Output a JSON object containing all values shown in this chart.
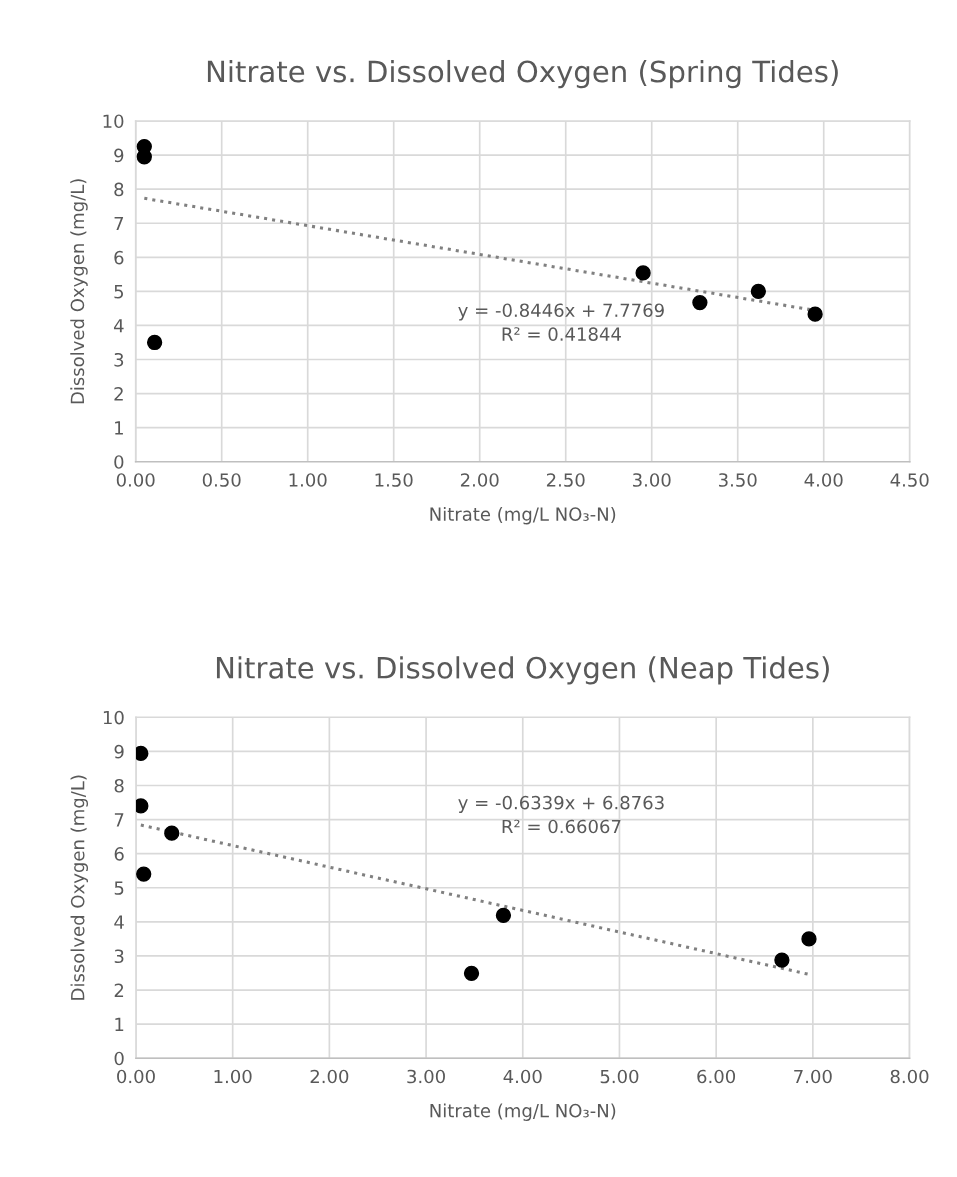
{
  "chart_data": [
    {
      "type": "scatter",
      "title": "Nitrate vs. Dissolved Oxygen (Spring Tides)",
      "xlabel": "Nitrate (mg/L NO₃-N)",
      "ylabel": "Dissolved Oxygen (mg/L)",
      "xlim": [
        0,
        4.5
      ],
      "xticks": [
        {
          "value": 0,
          "label": "0.00"
        },
        {
          "value": 0.5,
          "label": "0.50"
        },
        {
          "value": 1,
          "label": "1.00"
        },
        {
          "value": 1.5,
          "label": "1.50"
        },
        {
          "value": 2,
          "label": "2.00"
        },
        {
          "value": 2.5,
          "label": "2.50"
        },
        {
          "value": 3,
          "label": "3.00"
        },
        {
          "value": 3.5,
          "label": "3.50"
        },
        {
          "value": 4,
          "label": "4.00"
        },
        {
          "value": 4.5,
          "label": "4.50"
        }
      ],
      "ylim": [
        0,
        10
      ],
      "yticks": [
        0,
        1,
        2,
        3,
        4,
        5,
        6,
        7,
        8,
        9,
        10
      ],
      "grid": true,
      "marker": "circle",
      "series": [
        {
          "type": "scatter",
          "color": "#000000",
          "x": [
            0.05,
            0.05,
            0.11,
            2.95,
            3.28,
            3.62,
            3.95
          ],
          "values": [
            9.25,
            8.95,
            3.5,
            5.54,
            4.67,
            5.0,
            4.33
          ]
        },
        {
          "type": "line",
          "color": "#808080",
          "line_style": "dotted",
          "marker": "none",
          "x": [
            0.05,
            3.95
          ],
          "values": [
            7.73,
            4.44
          ]
        }
      ],
      "annotations": [
        "y = -0.8446x + 7.7769",
        "R² = 0.41844"
      ]
    },
    {
      "type": "scatter",
      "title": "Nitrate vs. Dissolved Oxygen (Neap Tides)",
      "xlabel": "Nitrate (mg/L NO₃-N)",
      "ylabel": "Dissolved Oxygen (mg/L)",
      "xlim": [
        0,
        8
      ],
      "xticks": [
        {
          "value": 0,
          "label": "0.00"
        },
        {
          "value": 1,
          "label": "1.00"
        },
        {
          "value": 2,
          "label": "2.00"
        },
        {
          "value": 3,
          "label": "3.00"
        },
        {
          "value": 4,
          "label": "4.00"
        },
        {
          "value": 5,
          "label": "5.00"
        },
        {
          "value": 6,
          "label": "6.00"
        },
        {
          "value": 7,
          "label": "7.00"
        },
        {
          "value": 8,
          "label": "8.00"
        }
      ],
      "ylim": [
        0,
        10
      ],
      "yticks": [
        0,
        1,
        2,
        3,
        4,
        5,
        6,
        7,
        8,
        9,
        10
      ],
      "grid": true,
      "marker": "circle",
      "series": [
        {
          "type": "scatter",
          "color": "#000000",
          "x": [
            0.05,
            0.05,
            0.08,
            0.37,
            3.47,
            3.8,
            6.68,
            6.96
          ],
          "values": [
            8.94,
            7.4,
            5.4,
            6.6,
            2.49,
            4.19,
            2.88,
            3.5
          ]
        },
        {
          "type": "line",
          "color": "#808080",
          "line_style": "dotted",
          "marker": "none",
          "x": [
            0.05,
            6.96
          ],
          "values": [
            6.84,
            2.46
          ]
        }
      ],
      "annotations": [
        "y = -0.6339x + 6.8763",
        "R² = 0.66067"
      ]
    }
  ]
}
